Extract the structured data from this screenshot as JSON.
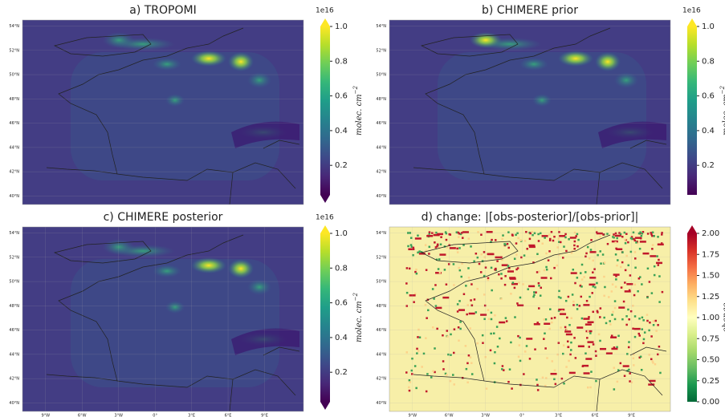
{
  "panels": [
    {
      "title": "a) TROPOMI",
      "colormap": "viridis",
      "extend": "both",
      "colorbar": {
        "offset": "1e16",
        "label": "molec. cm",
        "label_exponent": "−2",
        "lim": [
          0.03,
          1.0
        ],
        "ticks": [
          0.2,
          0.4,
          0.6,
          0.8,
          {
            "value": 1.0,
            "label": "1.0"
          }
        ]
      },
      "ylim": [
        39.3,
        54.5
      ],
      "yticks": [
        {
          "value": 54,
          "label": "54°N"
        },
        {
          "value": 52,
          "label": "52°N"
        },
        {
          "value": 50,
          "label": "50°N"
        },
        {
          "value": 48,
          "label": "48°N"
        },
        {
          "value": 46,
          "label": "46°N"
        },
        {
          "value": 44,
          "label": "44°N"
        },
        {
          "value": 42,
          "label": "42°N"
        },
        {
          "value": 40,
          "label": "40°N"
        }
      ]
    },
    {
      "title": "b) CHIMERE prior",
      "colormap": "viridis",
      "extend": "max",
      "colorbar": {
        "offset": "1e16",
        "label": "molec. cm",
        "label_exponent": "−2",
        "lim": [
          0.03,
          1.0
        ],
        "ticks": [
          0.2,
          0.4,
          0.6,
          0.8,
          {
            "value": 1.0,
            "label": "1.0"
          }
        ]
      },
      "ylim": [
        39.3,
        54.5
      ],
      "yticks": [
        {
          "value": 54,
          "label": "54°N"
        },
        {
          "value": 52,
          "label": "52°N"
        },
        {
          "value": 50,
          "label": "50°N"
        },
        {
          "value": 48,
          "label": "48°N"
        },
        {
          "value": 46,
          "label": "46°N"
        },
        {
          "value": 44,
          "label": "44°N"
        },
        {
          "value": 42,
          "label": "42°N"
        },
        {
          "value": 40,
          "label": "40°N"
        }
      ]
    },
    {
      "title": "c) CHIMERE posterior",
      "colormap": "viridis",
      "extend": "both",
      "colorbar": {
        "offset": "1e16",
        "label": "molec. cm",
        "label_exponent": "−2",
        "lim": [
          0.03,
          1.0
        ],
        "ticks": [
          0.2,
          0.4,
          0.6,
          0.8,
          {
            "value": 1.0,
            "label": "1.0"
          }
        ]
      },
      "ylim": [
        39.3,
        54.5
      ],
      "yticks": [
        {
          "value": 54,
          "label": "54°N"
        },
        {
          "value": 52,
          "label": "52°N"
        },
        {
          "value": 50,
          "label": "50°N"
        },
        {
          "value": 48,
          "label": "48°N"
        },
        {
          "value": 46,
          "label": "46°N"
        },
        {
          "value": 44,
          "label": "44°N"
        },
        {
          "value": 42,
          "label": "42°N"
        },
        {
          "value": 40,
          "label": "40°N"
        }
      ],
      "xlim": [
        -10.9,
        12.2
      ],
      "xticks": [
        {
          "value": -9,
          "label": "9°W"
        },
        {
          "value": -6,
          "label": "6°W"
        },
        {
          "value": -3,
          "label": "3°W"
        },
        {
          "value": 0,
          "label": "0°"
        },
        {
          "value": 3,
          "label": "3°E"
        },
        {
          "value": 6,
          "label": "6°E"
        },
        {
          "value": 9,
          "label": "9°E"
        }
      ]
    },
    {
      "title": "d) change: |[obs-posterior]/[obs-prior]|",
      "colormap": "RdYlGn_r",
      "extend": "max",
      "colorbar": {
        "label": "change",
        "lim": [
          0,
          2
        ],
        "ticks": [
          {
            "value": 0,
            "label": "0.00"
          },
          {
            "value": 0.25,
            "label": "0.25"
          },
          {
            "value": 0.5,
            "label": "0.50"
          },
          {
            "value": 0.75,
            "label": "0.75"
          },
          {
            "value": 1,
            "label": "1.00"
          },
          {
            "value": 1.25,
            "label": "1.25"
          },
          {
            "value": 1.5,
            "label": "1.50"
          },
          {
            "value": 1.75,
            "label": "1.75"
          },
          {
            "value": 2,
            "label": "2.00"
          }
        ]
      },
      "ylim": [
        39.3,
        54.5
      ],
      "yticks": [
        {
          "value": 54,
          "label": "54°N"
        },
        {
          "value": 52,
          "label": "52°N"
        },
        {
          "value": 50,
          "label": "50°N"
        },
        {
          "value": 48,
          "label": "48°N"
        },
        {
          "value": 46,
          "label": "46°N"
        },
        {
          "value": 44,
          "label": "44°N"
        },
        {
          "value": 42,
          "label": "42°N"
        },
        {
          "value": 40,
          "label": "40°N"
        }
      ],
      "xlim": [
        -10.9,
        12.2
      ],
      "xticks": [
        {
          "value": -9,
          "label": "9°W"
        },
        {
          "value": -6,
          "label": "6°W"
        },
        {
          "value": -3,
          "label": "3°W"
        },
        {
          "value": 0,
          "label": "0°"
        },
        {
          "value": 3,
          "label": "3°E"
        },
        {
          "value": 6,
          "label": "6°E"
        },
        {
          "value": 9,
          "label": "9°E"
        }
      ]
    }
  ]
}
